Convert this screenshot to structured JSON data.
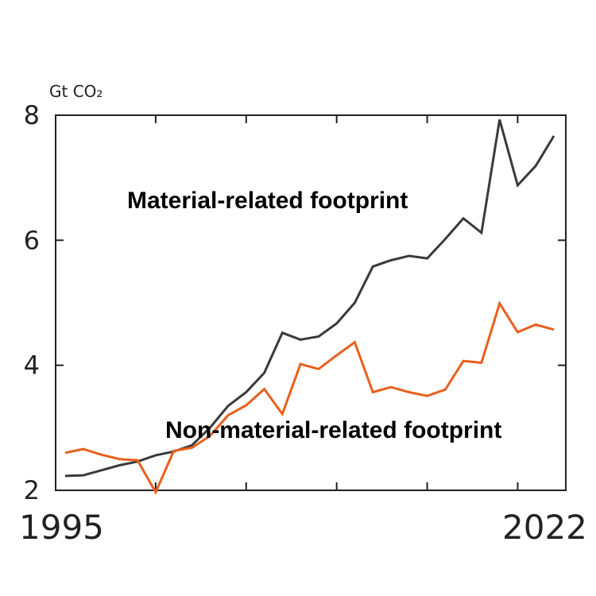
{
  "chart_data": {
    "type": "line",
    "ylabel": "Gt CO₂",
    "xlim": [
      1995,
      2022
    ],
    "ylim": [
      2,
      8
    ],
    "y_ticks": [
      2,
      4,
      6,
      8
    ],
    "x_tick_labels": {
      "left": "1995",
      "right": "2022"
    },
    "x_minor_ticks": [
      2000,
      2005,
      2010,
      2015,
      2020
    ],
    "grid": false,
    "x": [
      1995,
      1996,
      1997,
      1998,
      1999,
      2000,
      2001,
      2002,
      2003,
      2004,
      2005,
      2006,
      2007,
      2008,
      2009,
      2010,
      2011,
      2012,
      2013,
      2014,
      2015,
      2016,
      2017,
      2018,
      2019,
      2020,
      2021,
      2022
    ],
    "series": [
      {
        "name": "Material-related footprint",
        "color": "#3a3a3a",
        "values": [
          2.23,
          2.24,
          2.32,
          2.4,
          2.46,
          2.56,
          2.62,
          2.72,
          3.0,
          3.35,
          3.57,
          3.88,
          4.52,
          4.41,
          4.46,
          4.67,
          5.0,
          5.58,
          5.68,
          5.75,
          5.71,
          6.02,
          6.35,
          6.12,
          7.93,
          6.88,
          7.19,
          7.67
        ]
      },
      {
        "name": "Non-material-related footprint",
        "color": "#e8601c",
        "values": [
          2.6,
          2.66,
          2.57,
          2.5,
          2.48,
          1.97,
          2.63,
          2.68,
          2.87,
          3.2,
          3.36,
          3.62,
          3.22,
          4.02,
          3.94,
          4.16,
          4.37,
          3.57,
          3.65,
          3.57,
          3.51,
          3.61,
          4.07,
          4.04,
          4.99,
          4.53,
          4.65,
          4.57
        ]
      }
    ],
    "annotations": [
      {
        "text": "Material-related footprint",
        "series": 0
      },
      {
        "text": "Non-material-related footprint",
        "series": 1
      }
    ]
  }
}
